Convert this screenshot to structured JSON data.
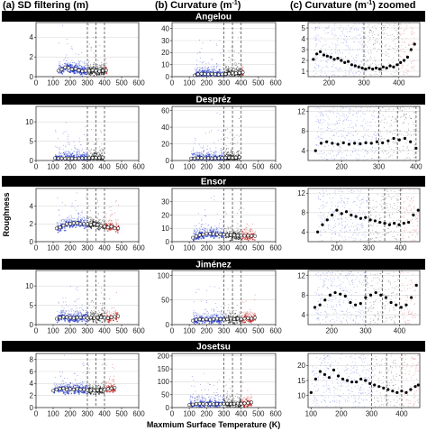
{
  "figure": {
    "ylabel": "Roughness",
    "xlabel": "Maxmium Surface Temperature (K)",
    "columns": [
      {
        "title_pre": "(a) SD filtering (m)",
        "title_sup": ""
      },
      {
        "title_pre": "(b) Curvature (m",
        "title_sup": "-1",
        "title_post": ")"
      },
      {
        "title_pre": "(c) Curvature (m",
        "title_sup": "-1",
        "title_post": ") zoomed"
      }
    ],
    "colors": {
      "cold": "#1f35c8",
      "mid": "#1a1a1a",
      "hot": "#c21a1a",
      "mean_marker": "#ffffff",
      "zoom_marker": "#000000",
      "grid": "#d9d9d9"
    }
  },
  "chart_data": [
    {
      "type": "scatter",
      "row": "Angelou",
      "col": "a",
      "xlim": [
        0,
        600
      ],
      "ylim": [
        0,
        5.5
      ],
      "xticks": [
        "0",
        "100",
        "200",
        "300",
        "400",
        "500",
        "600"
      ],
      "yticks": [
        "0",
        "2",
        "4"
      ],
      "vlines": [
        300,
        350,
        400
      ],
      "mean_curve": {
        "x": [
          130,
          150,
          170,
          190,
          210,
          230,
          250,
          270,
          290,
          310,
          330,
          350,
          370,
          390,
          410
        ],
        "y": [
          0.6,
          0.75,
          0.95,
          0.9,
          0.75,
          0.8,
          0.65,
          0.55,
          0.6,
          0.6,
          0.65,
          0.6,
          0.55,
          0.6,
          0.65
        ]
      }
    },
    {
      "type": "scatter",
      "row": "Angelou",
      "col": "b",
      "xlim": [
        0,
        600
      ],
      "ylim": [
        0,
        45
      ],
      "xticks": [
        "0",
        "100",
        "200",
        "300",
        "400",
        "500",
        "600"
      ],
      "yticks": [
        "0",
        "10",
        "20",
        "30",
        "40"
      ],
      "vlines": [
        300,
        350,
        400
      ],
      "mean_curve": {
        "x": [
          130,
          150,
          170,
          190,
          210,
          230,
          250,
          270,
          290,
          310,
          330,
          350,
          370,
          390,
          410
        ],
        "y": [
          1.0,
          2.0,
          2.5,
          2.2,
          2.0,
          2.3,
          2.0,
          1.8,
          2.0,
          2.2,
          2.5,
          3.0,
          2.8,
          3.2,
          3.5
        ]
      }
    },
    {
      "type": "scatter",
      "row": "Angelou",
      "col": "c",
      "xlim": [
        140,
        460
      ],
      "ylim": [
        0.5,
        5.5
      ],
      "xticks": [
        "200",
        "300",
        "400"
      ],
      "yticks": [
        "1",
        "2",
        "3",
        "4",
        "5"
      ],
      "vlines": [
        300,
        350,
        400
      ],
      "mean_curve": {
        "x": [
          155,
          165,
          175,
          185,
          195,
          205,
          215,
          225,
          235,
          245,
          255,
          265,
          275,
          285,
          295,
          305,
          315,
          325,
          335,
          345,
          355,
          365,
          375,
          385,
          395,
          405,
          415,
          425,
          435,
          445
        ],
        "y": [
          2.1,
          2.6,
          2.8,
          2.5,
          2.4,
          2.3,
          2.1,
          2.2,
          2.0,
          1.8,
          1.9,
          1.6,
          1.5,
          1.4,
          1.3,
          1.2,
          1.3,
          1.2,
          1.3,
          1.2,
          1.4,
          1.3,
          1.5,
          1.4,
          1.6,
          1.8,
          2.0,
          2.3,
          3.0,
          3.5
        ]
      }
    },
    {
      "type": "scatter",
      "row": "Despréz",
      "col": "a",
      "xlim": [
        0,
        600
      ],
      "ylim": [
        0,
        14
      ],
      "xticks": [
        "0",
        "100",
        "200",
        "300",
        "400",
        "500",
        "600"
      ],
      "yticks": [
        "0",
        "5",
        "10"
      ],
      "vlines": [
        300,
        350,
        400
      ],
      "mean_curve": {
        "x": [
          110,
          130,
          150,
          170,
          190,
          210,
          230,
          250,
          270,
          290,
          310,
          330,
          350,
          370,
          390
        ],
        "y": [
          0.6,
          0.55,
          0.55,
          0.5,
          0.5,
          0.55,
          0.5,
          0.55,
          0.6,
          0.6,
          0.65,
          0.7,
          0.7,
          0.7,
          0.8
        ]
      }
    },
    {
      "type": "scatter",
      "row": "Despréz",
      "col": "b",
      "xlim": [
        0,
        600
      ],
      "ylim": [
        0,
        65
      ],
      "xticks": [
        "0",
        "100",
        "200",
        "300",
        "400",
        "500",
        "600"
      ],
      "yticks": [
        "0",
        "20",
        "40",
        "60"
      ],
      "vlines": [
        300,
        350,
        400
      ],
      "mean_curve": {
        "x": [
          110,
          130,
          150,
          170,
          190,
          210,
          230,
          250,
          270,
          290,
          310,
          330,
          350,
          370,
          390
        ],
        "y": [
          2.5,
          2.5,
          3.0,
          2.8,
          2.6,
          2.8,
          2.5,
          2.7,
          2.8,
          3.0,
          3.2,
          3.5,
          3.2,
          3.5,
          4.0
        ]
      }
    },
    {
      "type": "scatter",
      "row": "Despréz",
      "col": "c",
      "xlim": [
        110,
        410
      ],
      "ylim": [
        2,
        13
      ],
      "xticks": [
        "200",
        "300",
        "400"
      ],
      "yticks": [
        "4",
        "8",
        "12"
      ],
      "vlines": [
        300,
        350,
        400
      ],
      "mean_curve": {
        "x": [
          130,
          145,
          160,
          175,
          190,
          205,
          220,
          235,
          250,
          265,
          280,
          295,
          310,
          325,
          340,
          355,
          370,
          385,
          400
        ],
        "y": [
          4.0,
          5.5,
          5.8,
          5.5,
          5.3,
          5.6,
          5.3,
          5.5,
          5.4,
          5.6,
          5.5,
          5.8,
          5.6,
          6.0,
          6.5,
          6.2,
          6.5,
          5.8,
          4.5
        ]
      }
    },
    {
      "type": "scatter",
      "row": "Ensor",
      "col": "a",
      "xlim": [
        0,
        600
      ],
      "ylim": [
        0,
        6
      ],
      "xticks": [
        "0",
        "100",
        "200",
        "300",
        "400",
        "500",
        "600"
      ],
      "yticks": [
        "0",
        "2",
        "4"
      ],
      "vlines": [
        300,
        350,
        400
      ],
      "mean_curve": {
        "x": [
          120,
          140,
          160,
          180,
          200,
          220,
          240,
          260,
          280,
          300,
          320,
          340,
          360,
          380,
          400,
          420,
          440,
          460,
          480
        ],
        "y": [
          1.5,
          1.6,
          1.8,
          2.0,
          2.0,
          2.1,
          2.1,
          2.0,
          2.0,
          2.0,
          1.9,
          2.0,
          1.9,
          1.8,
          1.7,
          1.6,
          1.7,
          1.5,
          1.5
        ]
      }
    },
    {
      "type": "scatter",
      "row": "Ensor",
      "col": "b",
      "xlim": [
        0,
        600
      ],
      "ylim": [
        0,
        40
      ],
      "xticks": [
        "0",
        "100",
        "200",
        "300",
        "400",
        "500",
        "600"
      ],
      "yticks": [
        "0",
        "10",
        "20",
        "30"
      ],
      "vlines": [
        300,
        350,
        400
      ],
      "mean_curve": {
        "x": [
          120,
          140,
          160,
          180,
          200,
          220,
          240,
          260,
          280,
          300,
          320,
          340,
          360,
          380,
          400,
          420,
          440,
          460,
          480
        ],
        "y": [
          3.0,
          4.0,
          5.0,
          5.5,
          6.0,
          6.0,
          5.8,
          5.5,
          5.5,
          5.3,
          5.0,
          5.0,
          4.8,
          4.6,
          4.5,
          4.4,
          4.5,
          4.3,
          4.2
        ]
      }
    },
    {
      "type": "scatter",
      "row": "Ensor",
      "col": "c",
      "xlim": [
        110,
        460
      ],
      "ylim": [
        2,
        13
      ],
      "xticks": [
        "200",
        "300",
        "400"
      ],
      "yticks": [
        "4",
        "8",
        "12"
      ],
      "vlines": [
        300,
        350,
        400
      ],
      "mean_curve": {
        "x": [
          140,
          155,
          170,
          185,
          200,
          215,
          230,
          245,
          260,
          275,
          290,
          305,
          320,
          335,
          350,
          365,
          380,
          395,
          410,
          425,
          440,
          455
        ],
        "y": [
          4.0,
          5.5,
          6.5,
          7.5,
          8.5,
          7.8,
          8.2,
          7.5,
          7.2,
          6.8,
          7.0,
          6.5,
          6.3,
          6.0,
          5.8,
          5.5,
          5.8,
          5.5,
          5.8,
          6.0,
          7.5,
          8.5
        ]
      }
    },
    {
      "type": "scatter",
      "row": "Jiménez",
      "col": "a",
      "xlim": [
        0,
        600
      ],
      "ylim": [
        0,
        14
      ],
      "xticks": [
        "0",
        "100",
        "200",
        "300",
        "400",
        "500",
        "600"
      ],
      "yticks": [
        "0",
        "5",
        "10"
      ],
      "vlines": [
        300,
        350,
        400
      ],
      "mean_curve": {
        "x": [
          120,
          140,
          160,
          180,
          200,
          220,
          240,
          260,
          280,
          300,
          320,
          340,
          360,
          380,
          400,
          420,
          440,
          460,
          480
        ],
        "y": [
          1.5,
          1.8,
          2.0,
          1.9,
          1.8,
          1.7,
          1.8,
          1.9,
          1.8,
          1.7,
          1.8,
          1.7,
          1.8,
          1.9,
          1.8,
          1.7,
          1.9,
          2.0,
          2.2
        ]
      }
    },
    {
      "type": "scatter",
      "row": "Jiménez",
      "col": "b",
      "xlim": [
        0,
        600
      ],
      "ylim": [
        0,
        110
      ],
      "xticks": [
        "0",
        "100",
        "200",
        "300",
        "400",
        "500",
        "600"
      ],
      "yticks": [
        "0",
        "50",
        "100"
      ],
      "vlines": [
        300,
        350,
        400
      ],
      "mean_curve": {
        "x": [
          120,
          140,
          160,
          180,
          200,
          220,
          240,
          260,
          280,
          300,
          320,
          340,
          360,
          380,
          400,
          420,
          440,
          460,
          480
        ],
        "y": [
          8,
          10,
          11,
          10,
          11,
          10,
          11,
          12,
          11,
          10,
          11,
          12,
          11,
          12,
          11,
          12,
          13,
          12,
          14
        ]
      }
    },
    {
      "type": "scatter",
      "row": "Jiménez",
      "col": "c",
      "xlim": [
        130,
        460
      ],
      "ylim": [
        2,
        13
      ],
      "xticks": [
        "200",
        "300",
        "400"
      ],
      "yticks": [
        "4",
        "8",
        "12"
      ],
      "vlines": [
        300,
        350,
        400
      ],
      "mean_curve": {
        "x": [
          150,
          165,
          180,
          195,
          210,
          225,
          240,
          255,
          270,
          285,
          300,
          315,
          330,
          345,
          360,
          375,
          390,
          405,
          420,
          435,
          450
        ],
        "y": [
          5.5,
          6.0,
          7.0,
          8.0,
          8.5,
          8.2,
          7.8,
          6.5,
          6.0,
          6.3,
          7.5,
          8.0,
          8.5,
          8.0,
          7.5,
          6.5,
          6.0,
          5.5,
          6.0,
          7.5,
          10.0
        ]
      }
    },
    {
      "type": "scatter",
      "row": "Josetsu",
      "col": "a",
      "xlim": [
        0,
        600
      ],
      "ylim": [
        0,
        9
      ],
      "xticks": [
        "0",
        "100",
        "200",
        "300",
        "400",
        "500",
        "600"
      ],
      "yticks": [
        "0",
        "2",
        "4",
        "6",
        "8"
      ],
      "vlines": [
        300,
        350,
        400
      ],
      "mean_curve": {
        "x": [
          100,
          120,
          140,
          160,
          180,
          200,
          220,
          240,
          260,
          280,
          300,
          320,
          340,
          360,
          380,
          400,
          420,
          440,
          460
        ],
        "y": [
          2.8,
          3.0,
          3.1,
          3.2,
          3.0,
          3.1,
          3.0,
          3.1,
          3.0,
          3.0,
          2.9,
          2.9,
          2.8,
          2.9,
          2.9,
          3.0,
          3.1,
          3.2,
          3.3
        ]
      }
    },
    {
      "type": "scatter",
      "row": "Josetsu",
      "col": "b",
      "xlim": [
        0,
        600
      ],
      "ylim": [
        0,
        210
      ],
      "xticks": [
        "0",
        "100",
        "200",
        "300",
        "400",
        "500",
        "600"
      ],
      "yticks": [
        "0",
        "50",
        "100",
        "150",
        "200"
      ],
      "vlines": [
        300,
        350,
        400
      ],
      "mean_curve": {
        "x": [
          100,
          120,
          140,
          160,
          180,
          200,
          220,
          240,
          260,
          280,
          300,
          320,
          340,
          360,
          380,
          400,
          420,
          440,
          460
        ],
        "y": [
          10,
          12,
          14,
          15,
          14,
          13,
          14,
          13,
          14,
          13,
          14,
          15,
          14,
          15,
          16,
          15,
          16,
          18,
          20
        ]
      }
    },
    {
      "type": "scatter",
      "row": "Josetsu",
      "col": "c",
      "xlim": [
        90,
        460
      ],
      "ylim": [
        6,
        24
      ],
      "xticks": [
        "100",
        "200",
        "300",
        "400"
      ],
      "yticks": [
        "10",
        "15",
        "20"
      ],
      "vlines": [
        300,
        350,
        400
      ],
      "mean_curve": {
        "x": [
          100,
          115,
          130,
          145,
          160,
          175,
          190,
          205,
          220,
          235,
          250,
          265,
          280,
          295,
          310,
          325,
          340,
          355,
          370,
          385,
          400,
          415,
          430,
          445,
          455
        ],
        "y": [
          11.0,
          15.5,
          18.0,
          17.0,
          16.0,
          18.5,
          16.5,
          15.5,
          15.0,
          14.5,
          14.5,
          15.5,
          15.0,
          14.0,
          13.5,
          13.0,
          12.5,
          12.0,
          11.5,
          11.0,
          11.5,
          11.0,
          12.0,
          13.0,
          13.5
        ]
      }
    }
  ],
  "rows": [
    "Angelou",
    "Despréz",
    "Ensor",
    "Jiménez",
    "Josetsu"
  ]
}
